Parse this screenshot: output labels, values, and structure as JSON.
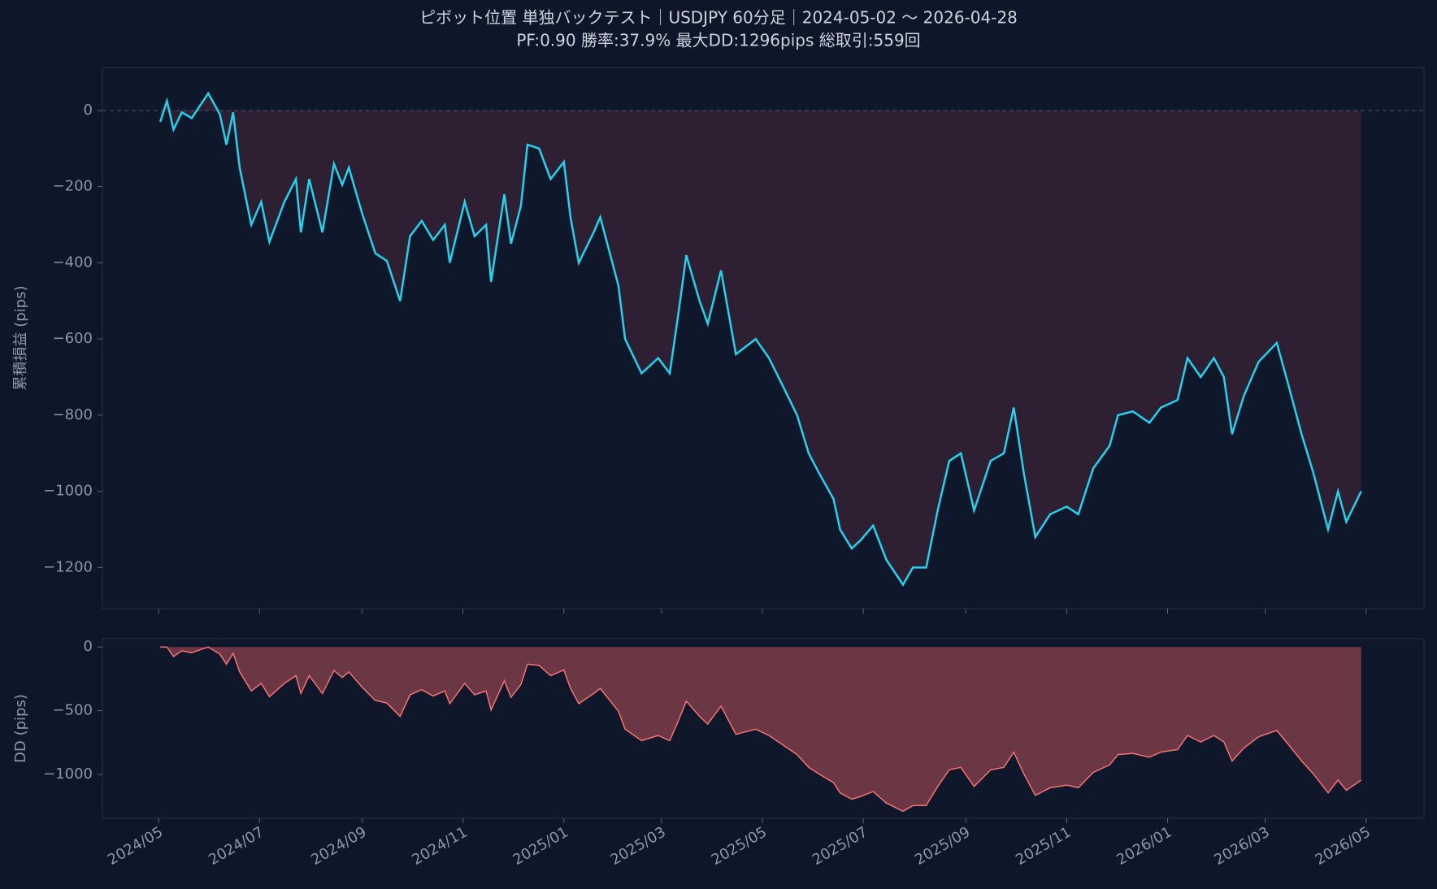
{
  "chart_data": [
    {
      "type": "line",
      "title": "ピボット位置 単独バックテスト｜USDJPY 60分足｜2024-05-02 〜 2026-04-28",
      "subtitle": "PF:0.90  勝率:37.9%  最大DD:1296pips  総取引:559回",
      "y_label": "累積損益 (pips)",
      "color": "#22d3ee",
      "fill_color": "#2f1f33",
      "x": [
        "2024-05-02",
        "2024-05-06",
        "2024-05-10",
        "2024-05-15",
        "2024-05-21",
        "2024-05-31",
        "2024-06-07",
        "2024-06-11",
        "2024-06-15",
        "2024-06-19",
        "2024-06-26",
        "2024-07-02",
        "2024-07-07",
        "2024-07-16",
        "2024-07-23",
        "2024-07-26",
        "2024-07-31",
        "2024-08-08",
        "2024-08-15",
        "2024-08-20",
        "2024-08-24",
        "2024-09-01",
        "2024-09-09",
        "2024-09-16",
        "2024-09-24",
        "2024-09-30",
        "2024-10-07",
        "2024-10-14",
        "2024-10-21",
        "2024-10-24",
        "2024-11-02",
        "2024-11-08",
        "2024-11-15",
        "2024-11-18",
        "2024-11-26",
        "2024-11-30",
        "2024-12-06",
        "2024-12-10",
        "2024-12-17",
        "2024-12-24",
        "2025-01-01",
        "2025-01-05",
        "2025-01-10",
        "2025-01-19",
        "2025-01-23",
        "2025-02-03",
        "2025-02-07",
        "2025-02-17",
        "2025-02-27",
        "2025-03-06",
        "2025-03-11",
        "2025-03-16",
        "2025-03-24",
        "2025-03-29",
        "2025-04-06",
        "2025-04-15",
        "2025-04-27",
        "2025-05-05",
        "2025-05-13",
        "2025-05-22",
        "2025-05-29",
        "2025-06-04",
        "2025-06-13",
        "2025-06-17",
        "2025-06-24",
        "2025-06-29",
        "2025-07-07",
        "2025-07-15",
        "2025-07-25",
        "2025-07-31",
        "2025-08-08",
        "2025-08-15",
        "2025-08-22",
        "2025-08-29",
        "2025-09-06",
        "2025-09-16",
        "2025-09-24",
        "2025-09-30",
        "2025-10-06",
        "2025-10-13",
        "2025-10-22",
        "2025-11-01",
        "2025-11-08",
        "2025-11-17",
        "2025-11-27",
        "2025-12-02",
        "2025-12-11",
        "2025-12-21",
        "2025-12-28",
        "2026-01-07",
        "2026-01-13",
        "2026-01-21",
        "2026-01-29",
        "2026-02-04",
        "2026-02-09",
        "2026-02-16",
        "2026-02-25",
        "2026-03-08",
        "2026-03-15",
        "2026-03-23",
        "2026-03-30",
        "2026-04-08",
        "2026-04-14",
        "2026-04-19",
        "2026-04-28"
      ],
      "values": [
        -30,
        25,
        -50,
        -5,
        -20,
        45,
        -10,
        -90,
        -5,
        -150,
        -300,
        -240,
        -345,
        -240,
        -180,
        -320,
        -180,
        -320,
        -140,
        -195,
        -150,
        -270,
        -375,
        -395,
        -500,
        -330,
        -290,
        -340,
        -300,
        -400,
        -240,
        -330,
        -300,
        -450,
        -220,
        -350,
        -250,
        -90,
        -100,
        -180,
        -135,
        -280,
        -400,
        -320,
        -280,
        -460,
        -600,
        -690,
        -650,
        -690,
        -540,
        -380,
        -500,
        -560,
        -420,
        -640,
        -600,
        -650,
        -720,
        -800,
        -900,
        -950,
        -1020,
        -1100,
        -1150,
        -1130,
        -1090,
        -1180,
        -1245,
        -1200,
        -1200,
        -1050,
        -920,
        -900,
        -1050,
        -920,
        -900,
        -780,
        -950,
        -1120,
        -1060,
        -1040,
        -1060,
        -940,
        -880,
        -800,
        -790,
        -820,
        -780,
        -760,
        -650,
        -700,
        -650,
        -700,
        -850,
        -750,
        -660,
        -610,
        -720,
        -850,
        -950,
        -1100,
        -1000,
        -1080,
        -1000
      ],
      "xlim": [
        "2024-03-28",
        "2026-06-05"
      ],
      "ylim": [
        -1308,
        113
      ],
      "yticks": [
        {
          "value": 0,
          "label": "0"
        },
        {
          "value": -200,
          "label": "−200"
        },
        {
          "value": -400,
          "label": "−400"
        },
        {
          "value": -600,
          "label": "−600"
        },
        {
          "value": -800,
          "label": "−800"
        },
        {
          "value": -1000,
          "label": "−1000"
        },
        {
          "value": -1200,
          "label": "−1200"
        }
      ]
    },
    {
      "type": "area",
      "y_label": "DD (pips)",
      "color": "#f87171",
      "fill_color": "#6b3744",
      "x": [
        "2024-05-02",
        "2024-05-06",
        "2024-05-10",
        "2024-05-15",
        "2024-05-21",
        "2024-05-31",
        "2024-06-07",
        "2024-06-11",
        "2024-06-15",
        "2024-06-19",
        "2024-06-26",
        "2024-07-02",
        "2024-07-07",
        "2024-07-16",
        "2024-07-23",
        "2024-07-26",
        "2024-07-31",
        "2024-08-08",
        "2024-08-15",
        "2024-08-20",
        "2024-08-24",
        "2024-09-01",
        "2024-09-09",
        "2024-09-16",
        "2024-09-24",
        "2024-09-30",
        "2024-10-07",
        "2024-10-14",
        "2024-10-21",
        "2024-10-24",
        "2024-11-02",
        "2024-11-08",
        "2024-11-15",
        "2024-11-18",
        "2024-11-26",
        "2024-11-30",
        "2024-12-06",
        "2024-12-10",
        "2024-12-17",
        "2024-12-24",
        "2025-01-01",
        "2025-01-05",
        "2025-01-10",
        "2025-01-19",
        "2025-01-23",
        "2025-02-03",
        "2025-02-07",
        "2025-02-17",
        "2025-02-27",
        "2025-03-06",
        "2025-03-11",
        "2025-03-16",
        "2025-03-24",
        "2025-03-29",
        "2025-04-06",
        "2025-04-15",
        "2025-04-27",
        "2025-05-05",
        "2025-05-13",
        "2025-05-22",
        "2025-05-29",
        "2025-06-04",
        "2025-06-13",
        "2025-06-17",
        "2025-06-24",
        "2025-06-29",
        "2025-07-07",
        "2025-07-15",
        "2025-07-25",
        "2025-07-31",
        "2025-08-08",
        "2025-08-15",
        "2025-08-22",
        "2025-08-29",
        "2025-09-06",
        "2025-09-16",
        "2025-09-24",
        "2025-09-30",
        "2025-10-06",
        "2025-10-13",
        "2025-10-22",
        "2025-11-01",
        "2025-11-08",
        "2025-11-17",
        "2025-11-27",
        "2025-12-02",
        "2025-12-11",
        "2025-12-21",
        "2025-12-28",
        "2026-01-07",
        "2026-01-13",
        "2026-01-21",
        "2026-01-29",
        "2026-02-04",
        "2026-02-09",
        "2026-02-16",
        "2026-02-25",
        "2026-03-08",
        "2026-03-15",
        "2026-03-23",
        "2026-03-30",
        "2026-04-08",
        "2026-04-14",
        "2026-04-19",
        "2026-04-28"
      ],
      "values": [
        0,
        0,
        -75,
        -30,
        -45,
        0,
        -55,
        -135,
        -50,
        -195,
        -345,
        -285,
        -390,
        -285,
        -225,
        -365,
        -225,
        -365,
        -185,
        -240,
        -195,
        -315,
        -420,
        -440,
        -545,
        -375,
        -335,
        -385,
        -345,
        -445,
        -285,
        -375,
        -345,
        -495,
        -265,
        -395,
        -295,
        -135,
        -145,
        -225,
        -180,
        -325,
        -445,
        -365,
        -325,
        -505,
        -645,
        -735,
        -695,
        -735,
        -585,
        -425,
        -545,
        -605,
        -465,
        -685,
        -645,
        -695,
        -765,
        -845,
        -945,
        -995,
        -1065,
        -1145,
        -1195,
        -1175,
        -1135,
        -1225,
        -1290,
        -1245,
        -1245,
        -1095,
        -965,
        -945,
        -1095,
        -965,
        -945,
        -825,
        -995,
        -1165,
        -1105,
        -1085,
        -1105,
        -985,
        -925,
        -845,
        -835,
        -865,
        -825,
        -805,
        -695,
        -745,
        -695,
        -745,
        -895,
        -795,
        -705,
        -655,
        -765,
        -895,
        -995,
        -1145,
        -1045,
        -1125,
        -1045
      ],
      "xlim": [
        "2024-03-28",
        "2026-06-05"
      ],
      "ylim": [
        -1345,
        65
      ],
      "yticks": [
        {
          "value": 0,
          "label": "0"
        },
        {
          "value": -500,
          "label": "−500"
        },
        {
          "value": -1000,
          "label": "−1000"
        }
      ],
      "xticks": [
        {
          "value": "2024-05-01",
          "label": "2024/05"
        },
        {
          "value": "2024-07-01",
          "label": "2024/07"
        },
        {
          "value": "2024-09-01",
          "label": "2024/09"
        },
        {
          "value": "2024-11-01",
          "label": "2024/11"
        },
        {
          "value": "2025-01-01",
          "label": "2025/01"
        },
        {
          "value": "2025-03-01",
          "label": "2025/03"
        },
        {
          "value": "2025-05-01",
          "label": "2025/05"
        },
        {
          "value": "2025-07-01",
          "label": "2025/07"
        },
        {
          "value": "2025-09-01",
          "label": "2025/09"
        },
        {
          "value": "2025-11-01",
          "label": "2025/11"
        },
        {
          "value": "2026-01-01",
          "label": "2026/01"
        },
        {
          "value": "2026-03-01",
          "label": "2026/03"
        },
        {
          "value": "2026-05-01",
          "label": "2026/05"
        }
      ]
    }
  ]
}
